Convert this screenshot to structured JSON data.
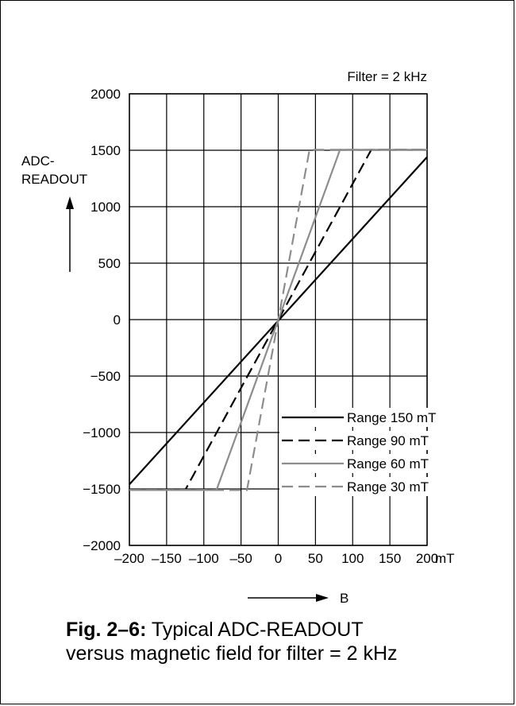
{
  "chart_data": {
    "type": "line",
    "annotation": "Filter = 2 kHz",
    "ylabel_lines": [
      "ADC-",
      "READOUT"
    ],
    "xunit": "mT",
    "xarrow_label": "B",
    "xlim": [
      -200,
      200
    ],
    "ylim": [
      -2000,
      2000
    ],
    "xticks": [
      -200,
      -150,
      -100,
      -50,
      0,
      50,
      100,
      150,
      200
    ],
    "yticks": [
      -2000,
      -1500,
      -1000,
      -500,
      0,
      500,
      1000,
      1500,
      2000
    ],
    "xtick_labels": [
      "–200",
      "–150",
      "–100",
      "–50",
      "0",
      "50",
      "100",
      "150",
      "200"
    ],
    "ytick_labels": [
      "−2000",
      "−1500",
      "−1000",
      "−500",
      "0",
      "500",
      "1000",
      "1500",
      "2000"
    ],
    "grid": true,
    "legend_position": "bottom-right",
    "series": [
      {
        "name": "Range 150 mT",
        "color": "#000000",
        "dash": "solid",
        "points": [
          [
            -200,
            -1460
          ],
          [
            200,
            1440
          ]
        ]
      },
      {
        "name": "Range 90 mT",
        "color": "#000000",
        "dash": "dashed",
        "points": [
          [
            -200,
            -1510
          ],
          [
            -125,
            -1510
          ],
          [
            125,
            1505
          ],
          [
            200,
            1505
          ]
        ]
      },
      {
        "name": "Range 60 mT",
        "color": "#8c8c8c",
        "dash": "solid",
        "points": [
          [
            -200,
            -1510
          ],
          [
            -83,
            -1510
          ],
          [
            83,
            1505
          ],
          [
            200,
            1505
          ]
        ]
      },
      {
        "name": "Range 30 mT",
        "color": "#8c8c8c",
        "dash": "dashed",
        "points": [
          [
            -200,
            -1510
          ],
          [
            -42,
            -1510
          ],
          [
            42,
            1505
          ],
          [
            200,
            1505
          ]
        ]
      }
    ]
  },
  "caption": {
    "bold": "Fig. 2–6:",
    "line1": " Typical ADC-READOUT",
    "line2": "versus magnetic field for filter = 2 kHz"
  }
}
